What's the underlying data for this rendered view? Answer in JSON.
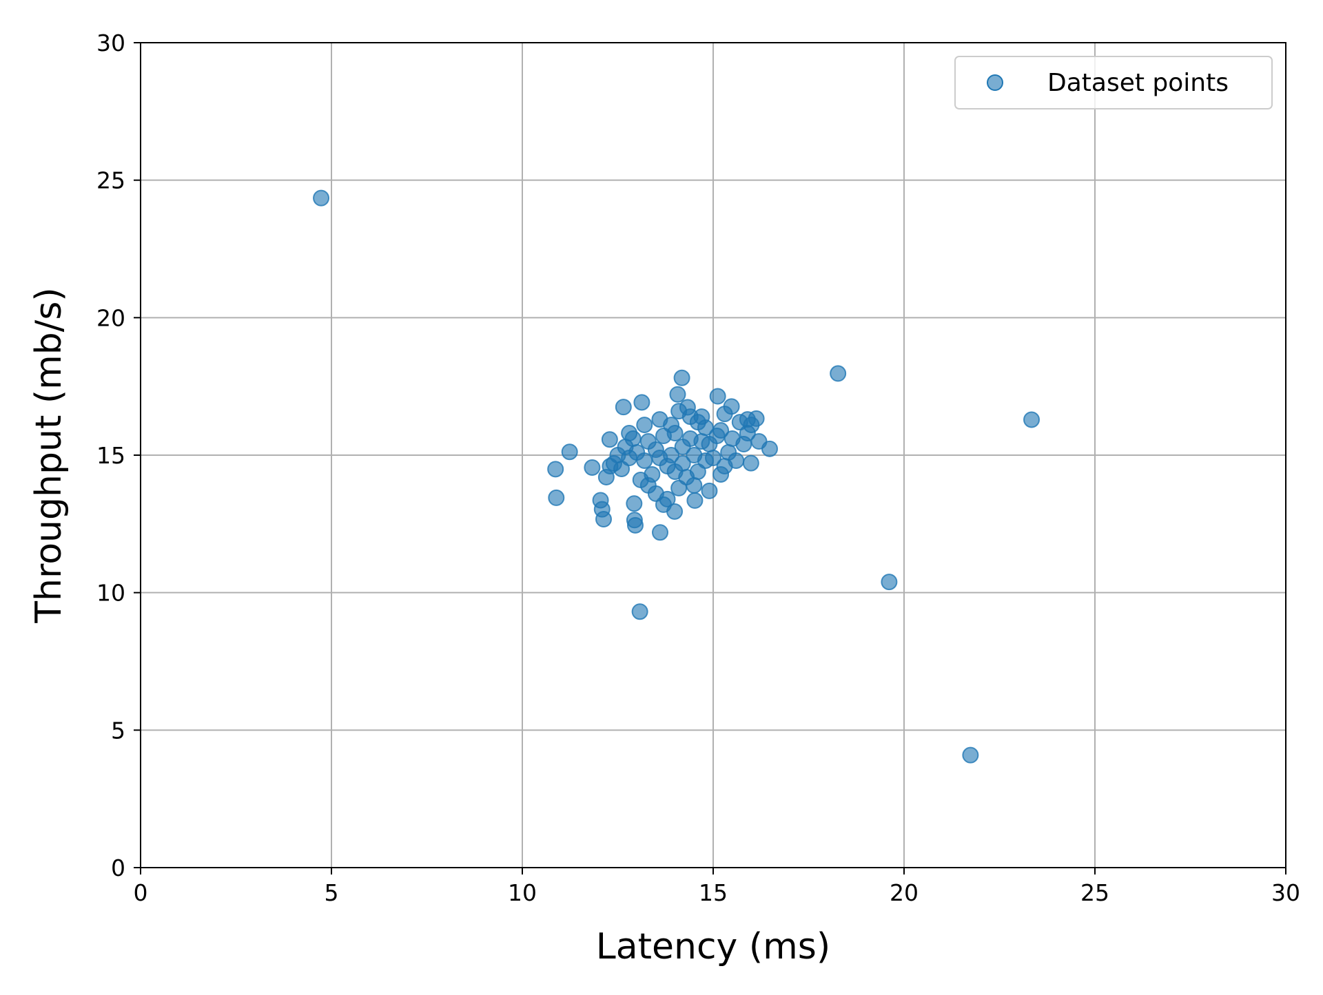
{
  "chart_data": {
    "type": "scatter",
    "title": "",
    "xlabel": "Latency (ms)",
    "ylabel": "Throughput (mb/s)",
    "xlim": [
      0,
      30
    ],
    "ylim": [
      0,
      30
    ],
    "xticks": [
      "0",
      "5",
      "10",
      "15",
      "20",
      "25",
      "30"
    ],
    "yticks": [
      "0",
      "5",
      "10",
      "15",
      "20",
      "25",
      "30"
    ],
    "grid": true,
    "legend": {
      "position": "top-right",
      "entries": [
        "Dataset points"
      ]
    },
    "series": [
      {
        "name": "Dataset points",
        "color": "#1f77b4",
        "points": [
          [
            4.73,
            24.35
          ],
          [
            18.27,
            17.97
          ],
          [
            23.34,
            16.29
          ],
          [
            19.61,
            10.39
          ],
          [
            21.74,
            4.09
          ],
          [
            13.08,
            9.31
          ],
          [
            13.61,
            12.19
          ],
          [
            14.18,
            17.81
          ],
          [
            16.48,
            15.23
          ],
          [
            10.87,
            14.49
          ],
          [
            10.89,
            13.45
          ],
          [
            11.24,
            15.12
          ],
          [
            12.05,
            13.36
          ],
          [
            12.09,
            13.03
          ],
          [
            12.13,
            12.67
          ],
          [
            12.93,
            13.24
          ],
          [
            12.94,
            12.64
          ],
          [
            12.96,
            12.45
          ],
          [
            12.65,
            16.75
          ],
          [
            13.13,
            16.92
          ],
          [
            15.12,
            17.14
          ],
          [
            14.07,
            17.21
          ],
          [
            11.83,
            14.55
          ],
          [
            12.29,
            15.57
          ],
          [
            14.52,
            13.35
          ],
          [
            13.99,
            12.95
          ],
          [
            15.99,
            14.71
          ],
          [
            16.13,
            16.33
          ],
          [
            15.48,
            16.77
          ],
          [
            14.33,
            16.74
          ],
          [
            14.0,
            15.8
          ],
          [
            14.2,
            15.3
          ],
          [
            14.5,
            15.0
          ],
          [
            13.8,
            14.6
          ],
          [
            14.9,
            15.4
          ],
          [
            13.5,
            15.2
          ],
          [
            15.2,
            15.9
          ],
          [
            14.6,
            14.4
          ],
          [
            13.9,
            16.1
          ],
          [
            14.8,
            16.0
          ],
          [
            13.2,
            14.8
          ],
          [
            15.5,
            15.6
          ],
          [
            14.3,
            14.2
          ],
          [
            13.7,
            15.7
          ],
          [
            15.0,
            14.9
          ],
          [
            14.1,
            13.8
          ],
          [
            13.4,
            14.3
          ],
          [
            15.7,
            16.2
          ],
          [
            14.7,
            15.5
          ],
          [
            13.0,
            15.1
          ],
          [
            12.8,
            14.9
          ],
          [
            12.6,
            14.5
          ],
          [
            15.9,
            15.8
          ],
          [
            13.3,
            13.9
          ],
          [
            14.4,
            16.4
          ],
          [
            15.3,
            14.6
          ],
          [
            12.9,
            15.6
          ],
          [
            13.6,
            16.3
          ],
          [
            15.8,
            15.4
          ],
          [
            14.9,
            13.7
          ],
          [
            13.1,
            14.1
          ],
          [
            12.7,
            15.3
          ],
          [
            16.0,
            16.1
          ],
          [
            14.2,
            14.7
          ],
          [
            13.8,
            13.4
          ],
          [
            15.4,
            15.1
          ],
          [
            12.4,
            14.7
          ],
          [
            14.6,
            16.2
          ],
          [
            13.5,
            13.6
          ],
          [
            15.6,
            14.8
          ],
          [
            12.2,
            14.2
          ],
          [
            12.5,
            15.0
          ],
          [
            13.9,
            15.0
          ],
          [
            14.4,
            15.6
          ],
          [
            14.8,
            14.8
          ],
          [
            13.3,
            15.5
          ],
          [
            15.1,
            15.7
          ],
          [
            14.0,
            14.4
          ],
          [
            13.6,
            14.9
          ],
          [
            15.3,
            16.5
          ],
          [
            14.5,
            13.9
          ],
          [
            13.2,
            16.1
          ],
          [
            16.2,
            15.5
          ],
          [
            12.3,
            14.6
          ],
          [
            14.1,
            16.6
          ],
          [
            15.2,
            14.3
          ],
          [
            13.7,
            13.2
          ],
          [
            14.7,
            16.4
          ],
          [
            12.8,
            15.8
          ],
          [
            15.9,
            16.3
          ]
        ]
      }
    ]
  }
}
